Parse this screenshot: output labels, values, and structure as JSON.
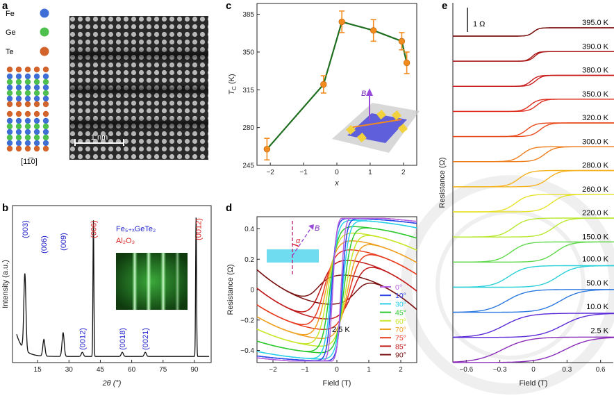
{
  "panels": {
    "a": {
      "letter": "a",
      "legend": [
        {
          "label": "Fe",
          "color": "#3f6fd6"
        },
        {
          "label": "Ge",
          "color": "#4ec04e"
        },
        {
          "label": "Te",
          "color": "#d2632a"
        }
      ],
      "axis_label": "[11̅0]",
      "scalebar_label": "1 nm"
    },
    "b": {
      "letter": "b",
      "legend": [
        {
          "label": "Fe₅₊ₓGeTe₂",
          "color": "#2222cc"
        },
        {
          "label": "Al₂O₃",
          "color": "#dd2222"
        }
      ],
      "peaks": [
        {
          "label": "(003)",
          "color": "#2222cc"
        },
        {
          "label": "(006)",
          "color": "#2222cc"
        },
        {
          "label": "(009)",
          "color": "#2222cc"
        },
        {
          "label": "(0012)",
          "color": "#2222cc"
        },
        {
          "label": "(006)",
          "color": "#dd2222"
        },
        {
          "label": "(0018)",
          "color": "#2222cc"
        },
        {
          "label": "(0021)",
          "color": "#2222cc"
        },
        {
          "label": "(0012)",
          "color": "#dd2222"
        }
      ]
    },
    "c": {
      "letter": "c",
      "inset_label": "B"
    },
    "d": {
      "letter": "d",
      "angle_label": "α",
      "field_label": "B",
      "temp_label": "2.5 K"
    },
    "e": {
      "letter": "e",
      "scale_label": "1 Ω"
    }
  },
  "chart_data": [
    {
      "panel": "b",
      "type": "line",
      "xlabel": "2θ (°)",
      "ylabel": "Intensity (a.u.)",
      "xlim": [
        3,
        98
      ],
      "xticks": [
        "15",
        "30",
        "45",
        "60",
        "75",
        "90"
      ],
      "yticks": false,
      "peaks_2theta": [
        8.9,
        18.0,
        27.2,
        36.4,
        41.7,
        55.5,
        66.5,
        90.8
      ],
      "peaks_height": [
        0.55,
        0.12,
        0.17,
        0.03,
        0.98,
        0.03,
        0.03,
        1.0
      ]
    },
    {
      "panel": "c",
      "type": "line",
      "xlabel": "x",
      "ylabel": "T_C (K)",
      "ylabel_main": "T",
      "ylabel_sub": "C",
      "ylabel_unit": " (K)",
      "xlim": [
        -2.4,
        2.4
      ],
      "ylim": [
        245,
        395
      ],
      "xticks": [
        "−2",
        "−1",
        "0",
        "1",
        "2"
      ],
      "yticks": [
        "245",
        "280",
        "315",
        "350",
        "385"
      ],
      "x": [
        -2.1,
        -0.4,
        0.15,
        1.1,
        1.95,
        2.1
      ],
      "y": [
        260,
        320,
        378,
        370,
        360,
        340
      ],
      "err": [
        10,
        8,
        10,
        10,
        8,
        10
      ],
      "line_color": "#1f6e1f",
      "marker_color": "#f28c1e"
    },
    {
      "panel": "d",
      "type": "line",
      "xlabel": "Field (T)",
      "ylabel": "Resistance (Ω)",
      "xlim": [
        -2.5,
        2.5
      ],
      "ylim": [
        -0.48,
        0.48
      ],
      "xticks": [
        "−2",
        "−1",
        "0",
        "1",
        "2"
      ],
      "yticks": [
        "−0.4",
        "−0.2",
        "0",
        "0.2",
        "0.4"
      ],
      "legend_position": "bottom-right",
      "series": [
        {
          "name": "0°",
          "angle": 0,
          "color": "#b65fe0",
          "amp": 0.48,
          "hc": 0.13
        },
        {
          "name": "10°",
          "angle": 10,
          "color": "#2a45e8",
          "amp": 0.47,
          "hc": 0.16
        },
        {
          "name": "30°",
          "angle": 30,
          "color": "#2ad0e8",
          "amp": 0.46,
          "hc": 0.18
        },
        {
          "name": "45°",
          "angle": 45,
          "color": "#2cc92c",
          "amp": 0.42,
          "hc": 0.22
        },
        {
          "name": "60°",
          "angle": 60,
          "color": "#c6e82a",
          "amp": 0.38,
          "hc": 0.28
        },
        {
          "name": "70°",
          "angle": 70,
          "color": "#f0a020",
          "amp": 0.33,
          "hc": 0.34
        },
        {
          "name": "75°",
          "angle": 75,
          "color": "#e83a1c",
          "amp": 0.27,
          "hc": 0.4
        },
        {
          "name": "85°",
          "angle": 85,
          "color": "#c01818",
          "amp": 0.2,
          "hc": 0.5
        },
        {
          "name": "90°",
          "angle": 90,
          "color": "#7a1010",
          "amp": 0.1,
          "hc": 0.6
        }
      ]
    },
    {
      "panel": "e",
      "type": "line",
      "xlabel": "Field (T)",
      "ylabel": "Resistance (Ω)",
      "xlim": [
        -0.72,
        0.72
      ],
      "xticks": [
        "−0.6",
        "−0.3",
        "0",
        "0.3",
        "0.6"
      ],
      "series": [
        {
          "name": "395.0 K",
          "color": "#7a1010",
          "hc": 0.0,
          "width": 0.05
        },
        {
          "name": "390.0 K",
          "color": "#a81414",
          "hc": 0.01,
          "width": 0.05
        },
        {
          "name": "380.0 K",
          "color": "#c81a1a",
          "hc": 0.02,
          "width": 0.06
        },
        {
          "name": "350.0 K",
          "color": "#dd2a1a",
          "hc": 0.03,
          "width": 0.07
        },
        {
          "name": "320.0 K",
          "color": "#e8481a",
          "hc": 0.06,
          "width": 0.08
        },
        {
          "name": "300.0 K",
          "color": "#ee7c1a",
          "hc": 0.1,
          "width": 0.09
        },
        {
          "name": "280.0 K",
          "color": "#f5b21e",
          "hc": 0.13,
          "width": 0.1
        },
        {
          "name": "260.0 K",
          "color": "#e6e22a",
          "hc": 0.16,
          "width": 0.11
        },
        {
          "name": "220.0 K",
          "color": "#b8e82e",
          "hc": 0.18,
          "width": 0.12
        },
        {
          "name": "150.0 K",
          "color": "#5fd84a",
          "hc": 0.2,
          "width": 0.13
        },
        {
          "name": "100.0 K",
          "color": "#2ad0d8",
          "hc": 0.22,
          "width": 0.15
        },
        {
          "name": "50.0 K",
          "color": "#2a78e0",
          "hc": 0.24,
          "width": 0.18
        },
        {
          "name": "10.0 K",
          "color": "#5a2ad8",
          "hc": 0.26,
          "width": 0.21
        },
        {
          "name": "2.5 K",
          "color": "#8a2ab8",
          "hc": 0.28,
          "width": 0.23
        }
      ]
    }
  ]
}
